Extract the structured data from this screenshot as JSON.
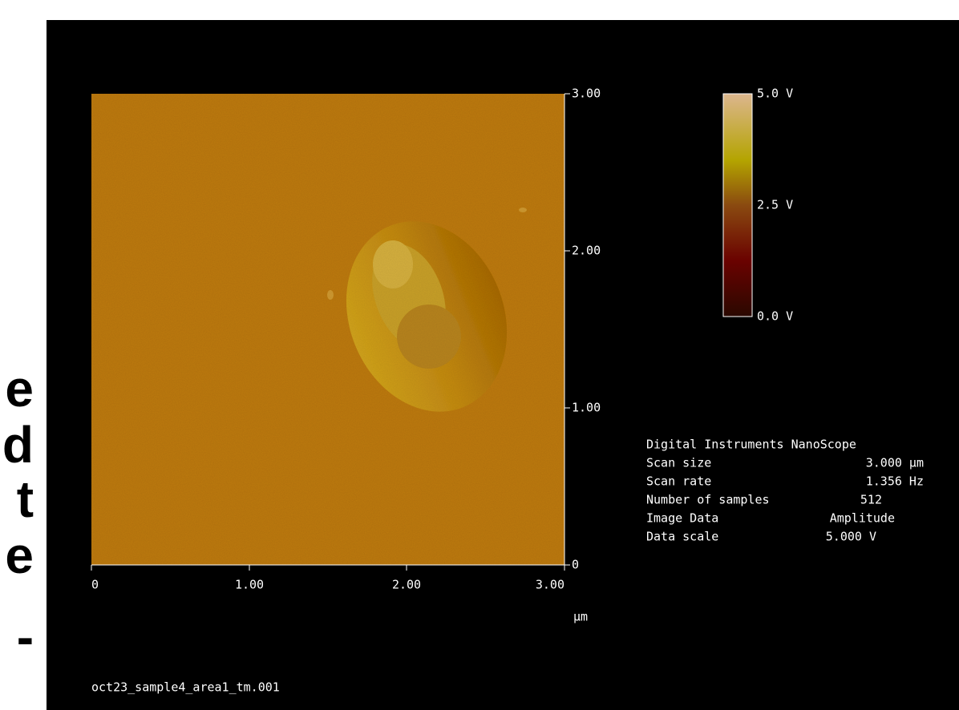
{
  "side_text": [
    "e",
    "d",
    "t",
    "e",
    "-"
  ],
  "y_ticks": [
    "3.00",
    "2.00",
    "1.00",
    "0"
  ],
  "x_ticks": [
    "0",
    "1.00",
    "2.00",
    "3.00"
  ],
  "x_unit": "µm",
  "colorbar": [
    "5.0 V",
    "2.5 V",
    "0.0 V"
  ],
  "info": {
    "title": "Digital Instruments NanoScope",
    "rows": [
      [
        "Scan size",
        "3.000 µm"
      ],
      [
        "Scan rate",
        "1.356 Hz"
      ],
      [
        "Number of samples",
        "512"
      ],
      [
        "Image Data",
        "Amplitude"
      ],
      [
        "Data scale",
        "5.000 V"
      ]
    ]
  },
  "filename": "oct23_sample4_area1_tm.001"
}
